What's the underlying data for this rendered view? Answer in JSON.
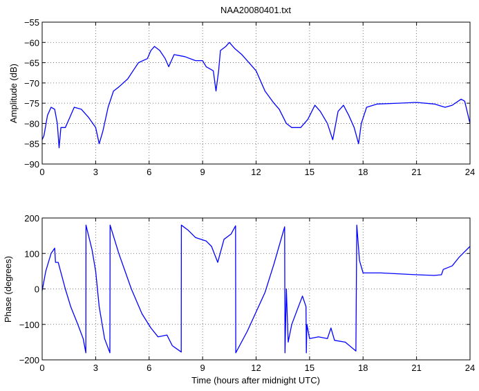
{
  "chart_data": [
    {
      "type": "line",
      "title": "NAA20080401.txt",
      "xlabel": "",
      "ylabel": "Amplitude (dB)",
      "xlim": [
        0,
        24
      ],
      "ylim": [
        -90,
        -55
      ],
      "xticks": [
        0,
        3,
        6,
        9,
        12,
        15,
        18,
        21,
        24
      ],
      "yticks": [
        -90,
        -85,
        -80,
        -75,
        -70,
        -65,
        -60,
        -55
      ],
      "grid": true,
      "color": "#0000ff",
      "x": [
        0,
        0.1,
        0.3,
        0.5,
        0.7,
        0.85,
        0.95,
        1.05,
        1.3,
        1.5,
        1.8,
        2.2,
        2.6,
        3.0,
        3.2,
        3.4,
        3.7,
        4.0,
        4.3,
        4.8,
        5.1,
        5.4,
        5.9,
        6.1,
        6.3,
        6.6,
        6.9,
        7.1,
        7.4,
        8.0,
        8.6,
        9.0,
        9.2,
        9.6,
        9.75,
        9.9,
        10.0,
        10.3,
        10.5,
        10.8,
        11.2,
        11.6,
        12.0,
        12.5,
        13.0,
        13.3,
        13.7,
        14.0,
        14.5,
        14.9,
        15.3,
        15.6,
        16.0,
        16.3,
        16.6,
        16.9,
        17.2,
        17.5,
        17.75,
        17.9,
        18.2,
        18.8,
        20,
        21,
        22,
        22.6,
        23.0,
        23.5,
        23.7,
        24
      ],
      "y": [
        -84,
        -83,
        -78,
        -76,
        -76.5,
        -80,
        -86,
        -81,
        -81,
        -79,
        -76,
        -76.5,
        -78.5,
        -81,
        -85,
        -82,
        -76,
        -72,
        -71,
        -69,
        -67,
        -65,
        -64,
        -62,
        -61,
        -62,
        -64,
        -66,
        -63,
        -63.5,
        -64.5,
        -64.5,
        -66,
        -67,
        -72,
        -67,
        -62,
        -61,
        -60,
        -61.5,
        -63,
        -65,
        -67,
        -72,
        -75,
        -76.5,
        -80,
        -81,
        -81,
        -79,
        -75.5,
        -77,
        -80,
        -84,
        -77,
        -75.5,
        -78,
        -81,
        -85,
        -80,
        -76,
        -75.2,
        -75,
        -74.8,
        -75.2,
        -76,
        -75.5,
        -74,
        -74.5,
        -80
      ]
    },
    {
      "type": "line",
      "title": "",
      "xlabel": "Time (hours after midnight UTC)",
      "ylabel": "Phase (degrees)",
      "xlim": [
        0,
        24
      ],
      "ylim": [
        -200,
        200
      ],
      "xticks": [
        0,
        3,
        6,
        9,
        12,
        15,
        18,
        21,
        24
      ],
      "yticks": [
        -200,
        -100,
        0,
        100,
        200
      ],
      "grid": true,
      "color": "#0000ff",
      "x": [
        0,
        0.2,
        0.5,
        0.7,
        0.75,
        0.9,
        1.3,
        1.6,
        2.0,
        2.3,
        2.45,
        2.46,
        2.8,
        3.0,
        3.2,
        3.5,
        3.8,
        3.81,
        4.3,
        5.0,
        5.6,
        6.1,
        6.5,
        7.0,
        7.3,
        7.8,
        7.81,
        8.2,
        8.6,
        9.2,
        9.5,
        9.85,
        10.2,
        10.6,
        10.85,
        10.86,
        11.5,
        12.5,
        13.0,
        13.6,
        13.62,
        13.7,
        13.8,
        14.0,
        14.3,
        14.6,
        14.8,
        14.82,
        14.85,
        15.0,
        15.5,
        16.0,
        16.2,
        16.4,
        17.0,
        17.6,
        17.65,
        17.8,
        18.0,
        19,
        21,
        22,
        22.4,
        22.5,
        23.0,
        23.4,
        24
      ],
      "y": [
        -5,
        50,
        100,
        115,
        75,
        75,
        0,
        -50,
        -100,
        -140,
        -180,
        180,
        110,
        50,
        -50,
        -140,
        -180,
        180,
        100,
        0,
        -70,
        -110,
        -135,
        -130,
        -160,
        -178,
        180,
        165,
        145,
        135,
        120,
        75,
        140,
        155,
        178,
        -180,
        -120,
        -10,
        70,
        175,
        -180,
        0,
        -150,
        -100,
        -60,
        -20,
        -50,
        -180,
        -100,
        -140,
        -135,
        -140,
        -110,
        -145,
        -150,
        -175,
        180,
        80,
        45,
        45,
        40,
        38,
        40,
        55,
        65,
        90,
        120
      ]
    }
  ]
}
